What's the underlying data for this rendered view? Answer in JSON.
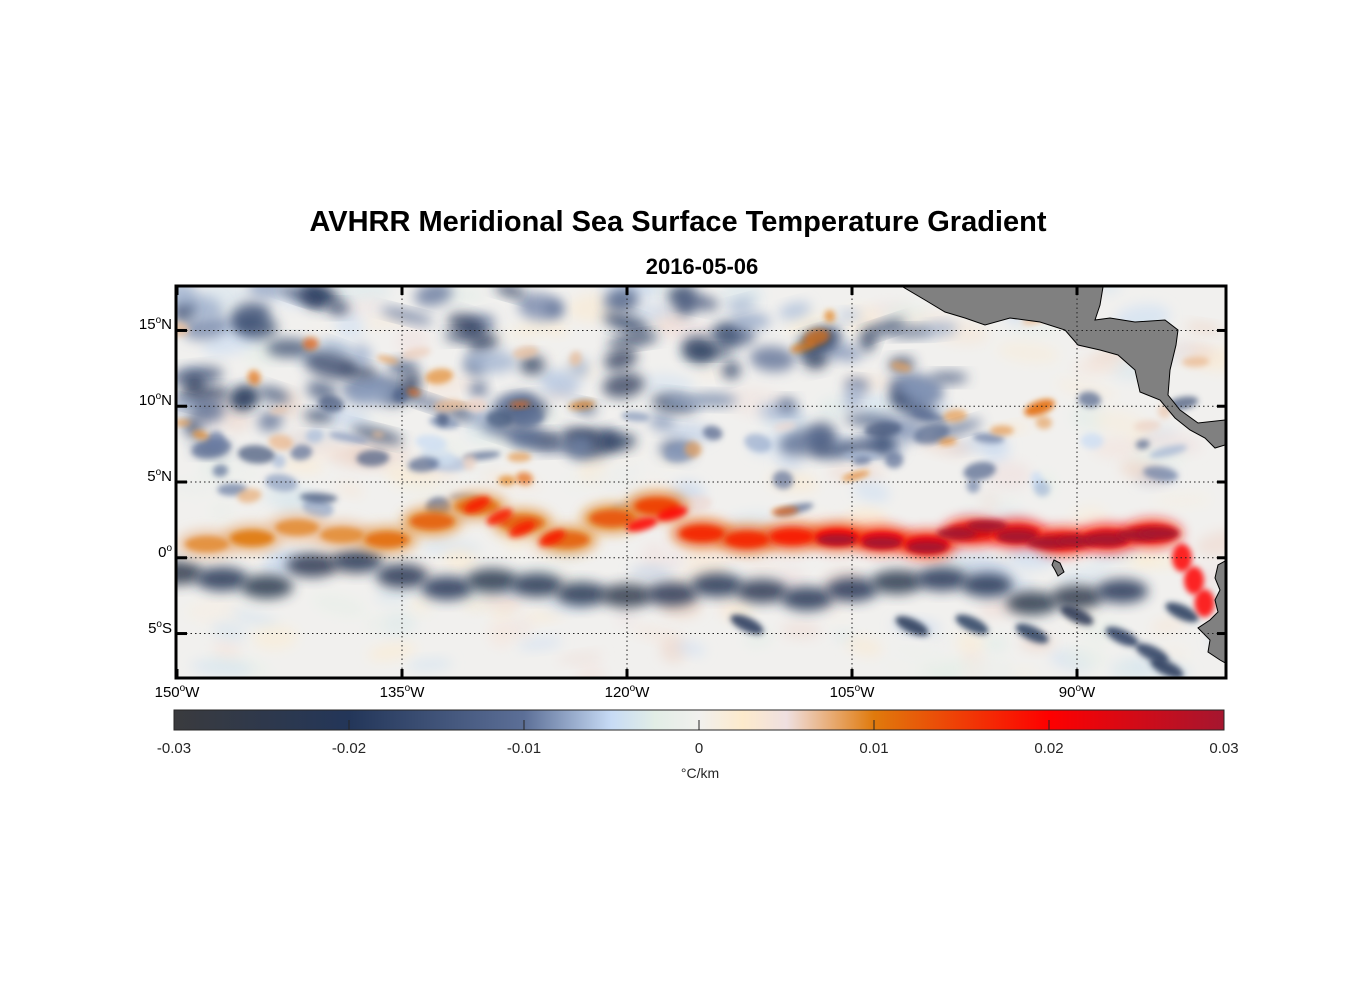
{
  "chart_data": {
    "type": "heatmap",
    "title": "AVHRR Meridional Sea Surface Temperature Gradient",
    "subtitle": "2016-05-06",
    "xlim": [
      -150,
      -80
    ],
    "ylim": [
      -8,
      18
    ],
    "grid": true,
    "x_ticks": [
      {
        "value": -150,
        "deg": "150",
        "suffix": "W"
      },
      {
        "value": -135,
        "deg": "135",
        "suffix": "W"
      },
      {
        "value": -120,
        "deg": "120",
        "suffix": "W"
      },
      {
        "value": -105,
        "deg": "105",
        "suffix": "W"
      },
      {
        "value": -90,
        "deg": "90",
        "suffix": "W"
      }
    ],
    "y_ticks": [
      {
        "value": 15,
        "deg": "15",
        "suffix": "N"
      },
      {
        "value": 10,
        "deg": "10",
        "suffix": "N"
      },
      {
        "value": 5,
        "deg": "5",
        "suffix": "N"
      },
      {
        "value": 0,
        "deg": "0",
        "suffix": ""
      },
      {
        "value": -5,
        "deg": "5",
        "suffix": "S"
      }
    ],
    "colorbar": {
      "range": [
        -0.03,
        0.03
      ],
      "ticks": [
        "-0.03",
        "-0.02",
        "-0.01",
        "0",
        "0.01",
        "0.02",
        "0.03"
      ],
      "tick_values": [
        -0.03,
        -0.02,
        -0.01,
        0,
        0.01,
        0.02,
        0.03
      ],
      "label": "°C/km",
      "stops": [
        {
          "v": -0.03,
          "color": "#3a3b3e"
        },
        {
          "v": -0.02,
          "color": "#233659"
        },
        {
          "v": -0.01,
          "color": "#5c6f97"
        },
        {
          "v": -0.005,
          "color": "#c7dbf5"
        },
        {
          "v": -0.0025,
          "color": "#e2eee6"
        },
        {
          "v": 0,
          "color": "#f1f0ee"
        },
        {
          "v": 0.0025,
          "color": "#fdebcc"
        },
        {
          "v": 0.005,
          "color": "#efdfe0"
        },
        {
          "v": 0.01,
          "color": "#e07a0c"
        },
        {
          "v": 0.02,
          "color": "#fe0000"
        },
        {
          "v": 0.03,
          "color": "#a5162f"
        }
      ]
    },
    "features": [
      {
        "name": "equatorial-warm-front",
        "lon_range": [
          -150,
          -82
        ],
        "lat_approx": [
          0.5,
          3.5
        ],
        "value_range": [
          0.008,
          0.03
        ]
      },
      {
        "name": "equatorial-cold-band",
        "lon_range": [
          -150,
          -85
        ],
        "lat_approx": [
          -3.5,
          -0.5
        ],
        "value_range": [
          -0.025,
          -0.012
        ]
      },
      {
        "name": "northern-cold-eddies",
        "lon_range": [
          -150,
          -100
        ],
        "lat_approx": [
          8,
          18
        ],
        "value_range": [
          -0.025,
          -0.008
        ]
      }
    ],
    "land_color": "#808080"
  }
}
